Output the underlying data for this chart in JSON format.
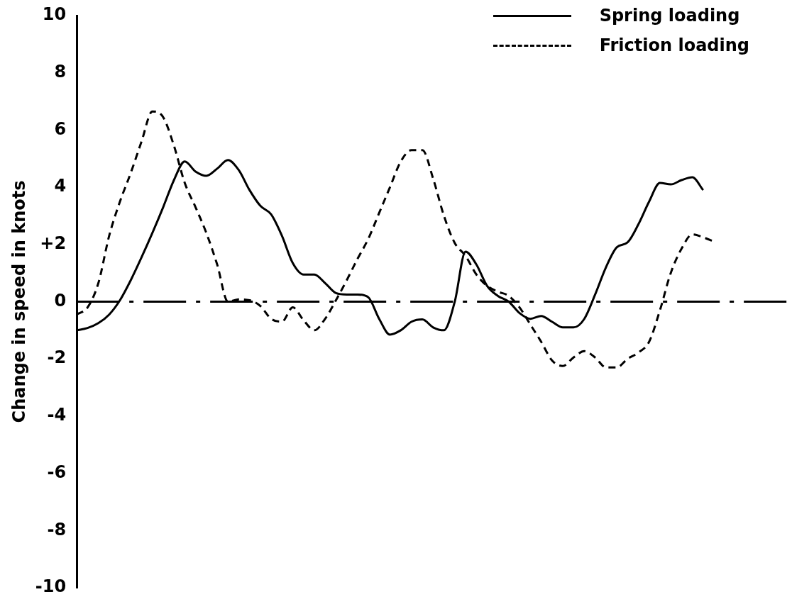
{
  "chart_data": {
    "type": "line",
    "ylabel": "Change in speed in knots",
    "ylim": [
      -10,
      10
    ],
    "yticks": [
      10,
      8,
      6,
      4,
      {
        "value": 2,
        "label": "+2"
      },
      0,
      -2,
      -4,
      -6,
      -8,
      -10
    ],
    "tick_labels": "y",
    "grid": false,
    "legend": "top right",
    "marker": "none",
    "categories": [
      null,
      null,
      null,
      null,
      null,
      null,
      null,
      null,
      null,
      null,
      null,
      null,
      null,
      null,
      null,
      null,
      null,
      null,
      null,
      null,
      null,
      null,
      null,
      null,
      null,
      null,
      null,
      null,
      null,
      null,
      null,
      null,
      null,
      null,
      null,
      null,
      null,
      null,
      null,
      null,
      null,
      null,
      null,
      null,
      null,
      null,
      null,
      null,
      null,
      null,
      null,
      null,
      null,
      null,
      null,
      null,
      null,
      null,
      null,
      null
    ],
    "ref_lines": [
      {
        "axis": "y",
        "value": 0,
        "line_style": "dashed"
      }
    ],
    "series": [
      {
        "name": "Spring loading",
        "color": "#000000",
        "line_style": "solid",
        "values": [
          -1.0,
          -0.92,
          -0.75,
          -0.45,
          0.05,
          0.75,
          1.55,
          2.4,
          3.3,
          4.25,
          4.9,
          4.55,
          4.4,
          4.65,
          4.95,
          4.6,
          3.9,
          3.35,
          3.05,
          2.3,
          1.35,
          0.95,
          0.95,
          0.65,
          0.3,
          0.25,
          0.25,
          0.15,
          -0.6,
          -1.15,
          -1.0,
          -0.7,
          -0.62,
          -0.9,
          -1.0,
          0.0,
          1.75,
          1.3,
          0.55,
          0.2,
          0.0,
          -0.4,
          -0.6,
          -0.5,
          -0.7,
          -0.9,
          -0.9,
          -0.6,
          0.25,
          1.2,
          1.9,
          2.07,
          2.7,
          3.5,
          4.15,
          4.1,
          4.25,
          4.35,
          3.9,
          null
        ]
      },
      {
        "name": "Friction loading",
        "color": "#000000",
        "line_style": "dashed",
        "values": [
          -0.45,
          -0.2,
          0.65,
          2.3,
          3.5,
          4.5,
          5.6,
          6.65,
          6.45,
          5.45,
          4.15,
          3.3,
          2.4,
          1.3,
          0.0,
          0.08,
          0.05,
          -0.15,
          -0.6,
          -0.7,
          -0.2,
          -0.65,
          -1.0,
          -0.6,
          0.05,
          0.75,
          1.5,
          2.2,
          3.1,
          4.0,
          4.9,
          5.3,
          5.3,
          4.3,
          3.0,
          2.05,
          1.6,
          0.95,
          0.55,
          0.35,
          0.2,
          -0.2,
          -0.8,
          -1.4,
          -2.05,
          -2.25,
          -1.95,
          -1.73,
          -1.95,
          -2.3,
          -2.3,
          -2.0,
          -1.78,
          -1.4,
          -0.3,
          1.0,
          1.85,
          2.35,
          2.25,
          2.1
        ]
      }
    ]
  }
}
